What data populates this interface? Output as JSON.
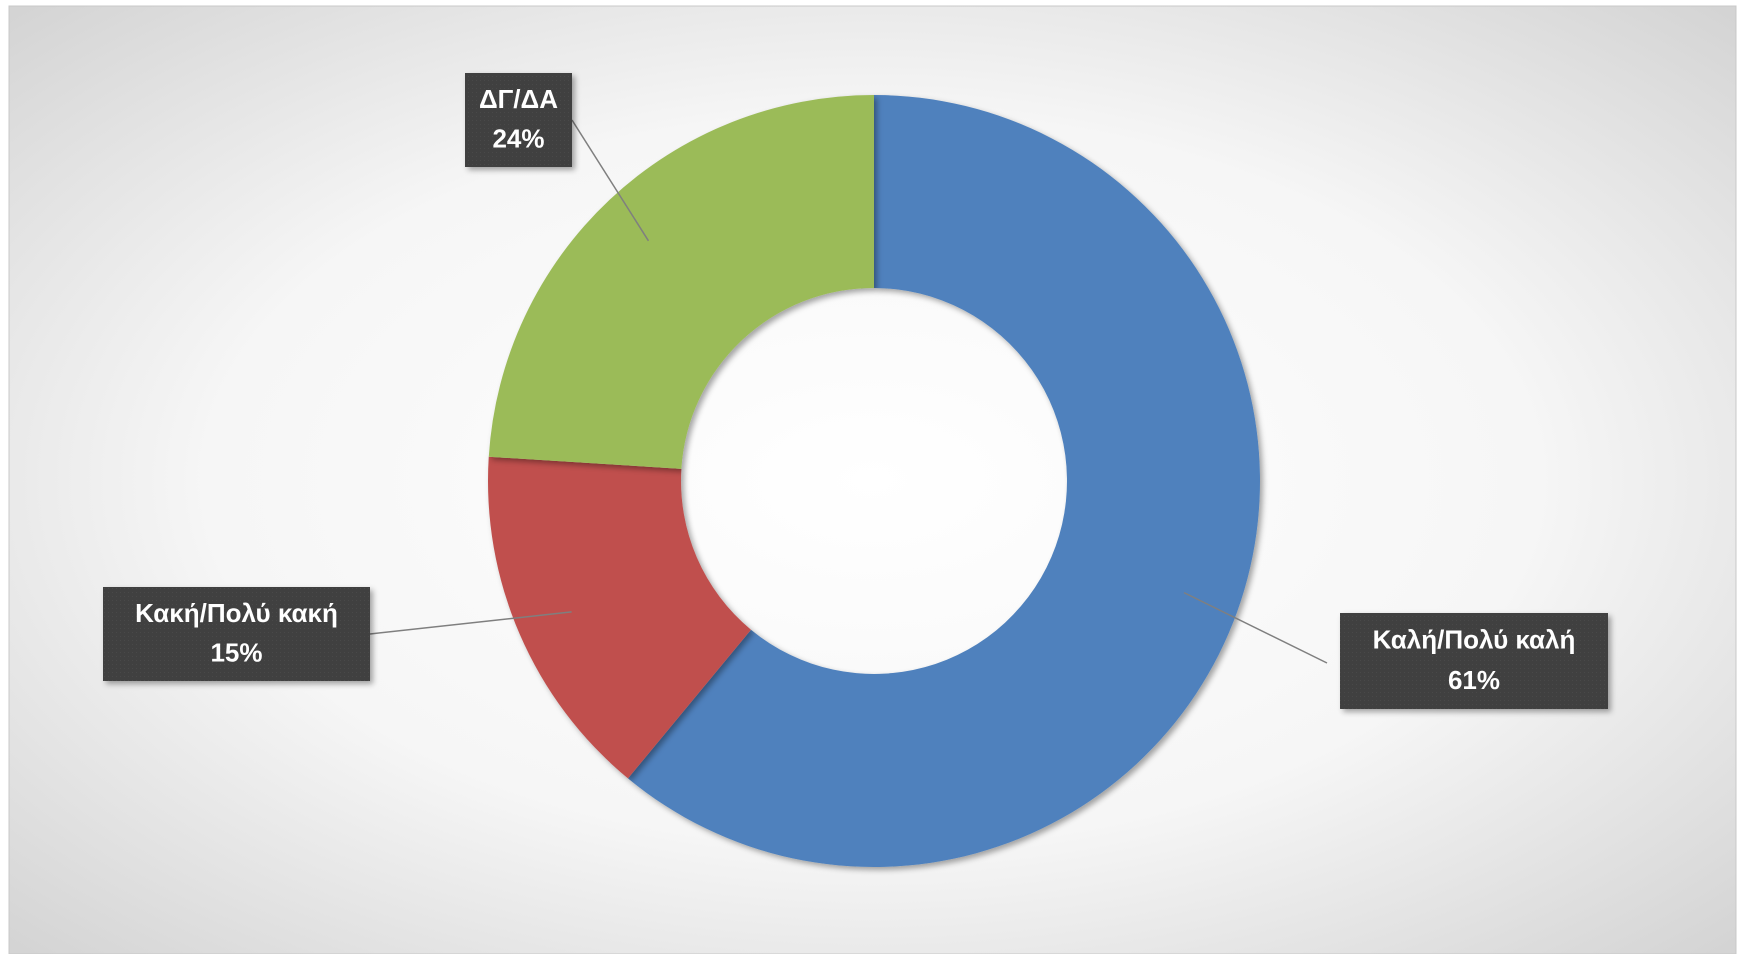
{
  "chart_data": {
    "type": "donut",
    "categories": [
      "Καλή/Πολύ καλή",
      "Κακή/Πολύ κακή",
      "ΔΓ/ΔΑ"
    ],
    "values": [
      61,
      15,
      24
    ],
    "value_labels": [
      "61%",
      "15%",
      "24%"
    ],
    "colors": [
      "#4f81bd",
      "#c0504d",
      "#9bbb59"
    ]
  }
}
